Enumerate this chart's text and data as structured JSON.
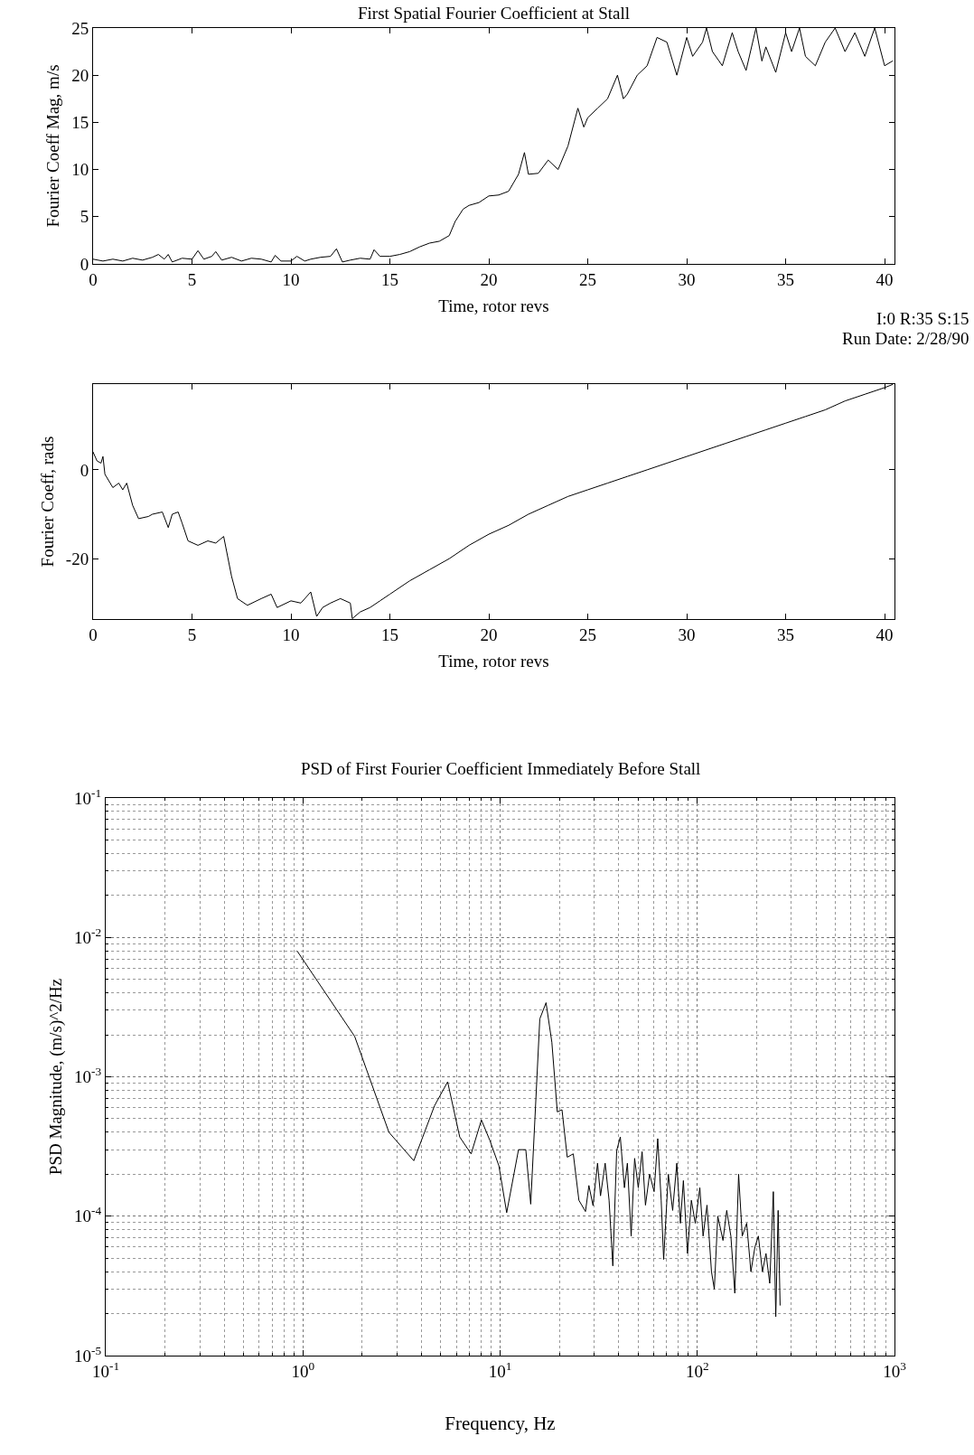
{
  "chart_data": [
    {
      "type": "line",
      "title": "First Spatial Fourier Coefficient at Stall",
      "xlabel": "Time, rotor revs",
      "ylabel": "Fourier Coeff Mag, m/s",
      "xlim": [
        0,
        40.5
      ],
      "ylim": [
        0,
        25
      ],
      "xticks": [
        0,
        5,
        10,
        15,
        20,
        25,
        30,
        35,
        40
      ],
      "yticks": [
        0,
        5,
        10,
        15,
        20,
        25
      ],
      "grid": false,
      "marker": "none",
      "line_style": "solid",
      "series": [
        {
          "color": "#000000",
          "x": [
            0,
            0.5,
            1,
            1.5,
            2,
            2.5,
            3,
            3.3,
            3.6,
            3.8,
            4,
            4.5,
            5,
            5.3,
            5.6,
            6,
            6.2,
            6.5,
            7,
            7.5,
            8,
            8.5,
            9,
            9.2,
            9.5,
            10,
            10.3,
            10.7,
            11,
            11.5,
            12,
            12.3,
            12.6,
            13,
            13.5,
            14,
            14.2,
            14.5,
            15,
            15.5,
            16,
            16.5,
            17,
            17.5,
            18,
            18.3,
            18.7,
            19,
            19.5,
            20,
            20.5,
            21,
            21.5,
            21.8,
            22,
            22.5,
            23,
            23.5,
            24,
            24.5,
            24.8,
            25,
            25.5,
            26,
            26.5,
            26.8,
            27,
            27.5,
            28,
            28.5,
            29,
            29.5,
            30,
            30.3,
            30.8,
            31,
            31.3,
            31.8,
            32.3,
            32.6,
            33,
            33.5,
            33.8,
            34,
            34.5,
            35,
            35.3,
            35.7,
            36,
            36.5,
            37,
            37.5,
            38,
            38.5,
            39,
            39.5,
            40,
            40.4
          ],
          "values": [
            0.5,
            0.3,
            0.5,
            0.3,
            0.6,
            0.4,
            0.7,
            1.0,
            0.5,
            1.0,
            0.2,
            0.6,
            0.5,
            1.4,
            0.5,
            0.8,
            1.3,
            0.4,
            0.7,
            0.3,
            0.6,
            0.5,
            0.2,
            0.9,
            0.3,
            0.3,
            0.8,
            0.3,
            0.5,
            0.7,
            0.8,
            1.6,
            0.2,
            0.4,
            0.6,
            0.5,
            1.5,
            0.8,
            0.8,
            1.0,
            1.3,
            1.8,
            2.2,
            2.4,
            3.0,
            4.5,
            5.8,
            6.2,
            6.5,
            7.2,
            7.3,
            7.7,
            9.5,
            11.8,
            9.5,
            9.6,
            11.0,
            10.0,
            12.5,
            16.5,
            14.5,
            15.5,
            16.5,
            17.5,
            20,
            17.5,
            18,
            20,
            21,
            24,
            23.5,
            20,
            24,
            22,
            23.5,
            25,
            22.5,
            21,
            24.5,
            22.5,
            20.5,
            25,
            21.5,
            23,
            20.3,
            24.5,
            22.5,
            25,
            22,
            21,
            23.5,
            25,
            22.5,
            24.5,
            22,
            25,
            21,
            21.5
          ]
        }
      ]
    },
    {
      "type": "line",
      "xlabel": "Time, rotor revs",
      "ylabel": "Fourier Coeff, rads",
      "xlim": [
        0,
        40.5
      ],
      "ylim": [
        -33.6,
        19.3
      ],
      "xticks": [
        0,
        5,
        10,
        15,
        20,
        25,
        30,
        35,
        40
      ],
      "yticks": [
        -20,
        0
      ],
      "grid": false,
      "marker": "none",
      "line_style": "solid",
      "annotations": [
        "I:0 R:35 S:15",
        "Run Date: 2/28/90"
      ],
      "series": [
        {
          "color": "#000000",
          "x": [
            0,
            0.2,
            0.4,
            0.5,
            0.6,
            1,
            1.3,
            1.5,
            1.7,
            2,
            2.3,
            2.8,
            3,
            3.5,
            3.8,
            4,
            4.3,
            4.5,
            4.8,
            5.3,
            5.8,
            6.2,
            6.6,
            7,
            7.3,
            7.8,
            8.5,
            9,
            9.3,
            10,
            10.5,
            11,
            11.3,
            11.6,
            12,
            12.5,
            13,
            13.1,
            13.5,
            14,
            14.5,
            15,
            16,
            17,
            18,
            19,
            20,
            21,
            22,
            23,
            24,
            25,
            26,
            27,
            28,
            29,
            30,
            31,
            32,
            33,
            34,
            35,
            36,
            37,
            38,
            39,
            40,
            40.4
          ],
          "values": [
            4,
            2,
            1.5,
            3,
            -1,
            -4,
            -3,
            -4.5,
            -3,
            -8,
            -11,
            -10.5,
            -10,
            -9.5,
            -13,
            -10,
            -9.5,
            -12,
            -16,
            -17,
            -16,
            -16.5,
            -15,
            -24,
            -29,
            -30.5,
            -29,
            -28,
            -31,
            -29.5,
            -30,
            -27.5,
            -33,
            -31,
            -30,
            -29,
            -30,
            -33.5,
            -32,
            -31,
            -29.5,
            -28,
            -25,
            -22.5,
            -20,
            -17,
            -14.5,
            -12.5,
            -10,
            -8,
            -6,
            -4.5,
            -3,
            -1.5,
            0,
            1.5,
            3,
            4.5,
            6,
            7.5,
            9,
            10.5,
            12,
            13.5,
            15.5,
            17,
            18.5,
            19.2
          ]
        }
      ]
    },
    {
      "type": "line",
      "title": "PSD of First Fourier Coefficient Immediately Before Stall",
      "xlabel": "Frequency, Hz",
      "ylabel": "PSD Magnitude, (m/s)^2/Hz",
      "log": "xy",
      "grid": true,
      "marker": "none",
      "line_style": "solid",
      "xlim": [
        0.1,
        1000
      ],
      "ylim": [
        1e-05,
        0.1
      ],
      "xticks": [
        {
          "value": 0.1,
          "label": "10$^{-1}$"
        },
        {
          "value": 1,
          "label": "10$^{0}$"
        },
        {
          "value": 10,
          "label": "10$^{1}$"
        },
        {
          "value": 100,
          "label": "10$^{2}$"
        },
        {
          "value": 1000,
          "label": "10$^{3}$"
        }
      ],
      "yticks": [
        {
          "value": 1e-05,
          "label": "10$^{-5}$"
        },
        {
          "value": 0.0001,
          "label": "10$^{-4}$"
        },
        {
          "value": 0.001,
          "label": "10$^{-3}$"
        },
        {
          "value": 0.01,
          "label": "10$^{-2}$"
        },
        {
          "value": 0.1,
          "label": "10$^{-1}$"
        }
      ],
      "series": [
        {
          "color": "#000000",
          "x": [
            0.94,
            1.83,
            2.73,
            3.65,
            4.65,
            5.42,
            6.24,
            7.13,
            8.04,
            8.87,
            9.86,
            10.8,
            12.4,
            13.5,
            14.3,
            15.9,
            17.1,
            18.3,
            19.5,
            20.6,
            21.9,
            23.5,
            25.1,
            27.1,
            28.2,
            29.6,
            31.2,
            32.3,
            34.1,
            35.7,
            37.3,
            39.0,
            40.7,
            42.7,
            44.2,
            46.2,
            48.1,
            50.2,
            52.5,
            54.6,
            57.3,
            60.4,
            63.0,
            65.6,
            67.5,
            71.3,
            75.0,
            78.7,
            82.1,
            85.0,
            89.2,
            93.3,
            97.7,
            103,
            107,
            112,
            118,
            122,
            127,
            135,
            141,
            148,
            155,
            162,
            169,
            178,
            187,
            196,
            204,
            214,
            223,
            233,
            243,
            250,
            257,
            263
          ],
          "values": [
            0.0079,
            0.00195,
            0.0004,
            0.00025,
            0.00062,
            0.00092,
            0.00037,
            0.00028,
            0.00049,
            0.00035,
            0.00023,
            0.000106,
            0.0003,
            0.0003,
            0.000122,
            0.0026,
            0.0034,
            0.00177,
            0.00056,
            0.00058,
            0.000265,
            0.00028,
            0.00013,
            0.000108,
            0.000166,
            0.000119,
            0.00024,
            0.00014,
            0.00024,
            0.00013,
            4.4e-05,
            0.000295,
            0.00037,
            0.00016,
            0.00024,
            7.2e-05,
            0.00026,
            0.00016,
            0.00029,
            0.00012,
            0.0002,
            0.00015,
            0.00036,
            0.00013,
            4.9e-05,
            0.0002,
            0.00011,
            0.00024,
            8.9e-05,
            0.00018,
            5.4e-05,
            0.00013,
            8.9e-05,
            0.00016,
            7.2e-05,
            0.00012,
            4e-05,
            3e-05,
            0.0001,
            6.7e-05,
            0.00011,
            7.2e-05,
            2.8e-05,
            0.0002,
            7.2e-05,
            8.9e-05,
            4e-05,
            6e-05,
            7.2e-05,
            4e-05,
            5.4e-05,
            3.3e-05,
            0.00015,
            1.9e-05,
            0.00011,
            2.3e-05
          ]
        }
      ]
    }
  ]
}
